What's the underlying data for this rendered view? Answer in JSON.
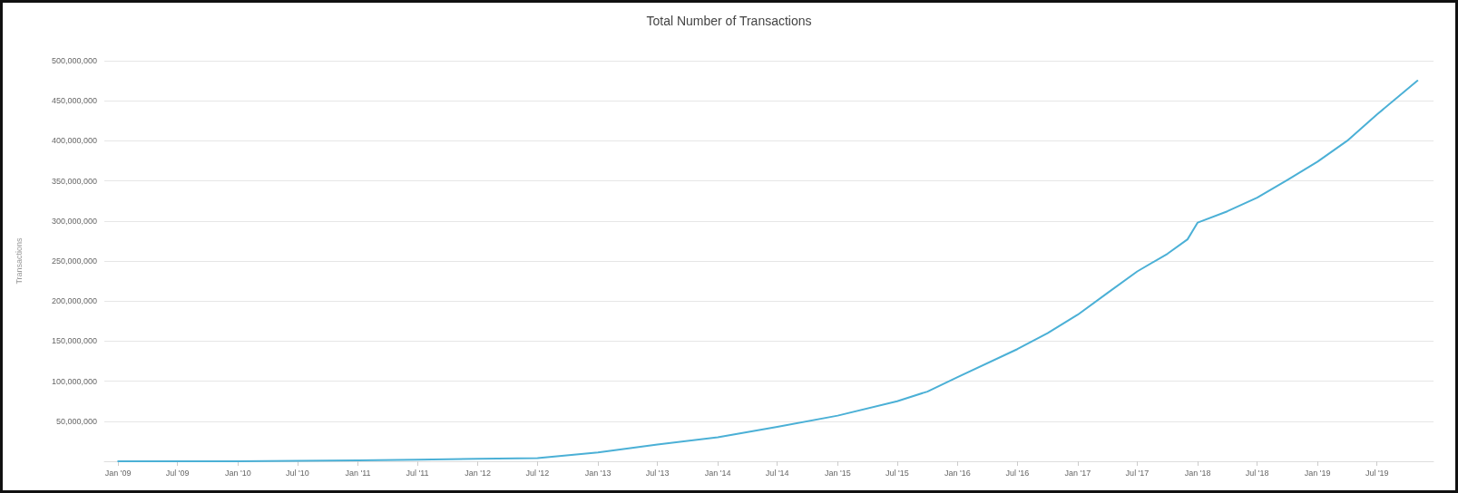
{
  "chart_data": {
    "type": "line",
    "title": "Total Number of Transactions",
    "ylabel": "Transactions",
    "x": [
      "2009-01",
      "2010-01",
      "2011-01",
      "2011-07",
      "2012-01",
      "2012-07",
      "2013-01",
      "2013-07",
      "2014-01",
      "2014-07",
      "2015-01",
      "2015-07",
      "2015-10",
      "2016-01",
      "2016-07",
      "2016-10",
      "2017-01",
      "2017-04",
      "2017-07",
      "2017-10",
      "2017-12",
      "2018-01",
      "2018-04",
      "2018-07",
      "2018-10",
      "2019-01",
      "2019-04",
      "2019-07",
      "2019-11"
    ],
    "series": [
      {
        "color": "#4bb0d6",
        "values": [
          0,
          0,
          1000000,
          2000000,
          3000000,
          4000000,
          11000000,
          21000000,
          30000000,
          43000000,
          57000000,
          75000000,
          87000000,
          105000000,
          140000000,
          160000000,
          183000000,
          210000000,
          237000000,
          259000000,
          277000000,
          298000000,
          312000000,
          329000000,
          351000000,
          374000000,
          400000000,
          433000000,
          475000000
        ]
      }
    ],
    "xlim": [
      "2008-11-20",
      "2019-12-20"
    ],
    "xticks": [
      {
        "value": "2009-01",
        "label": "Jan '09"
      },
      {
        "value": "2009-07",
        "label": "Jul '09"
      },
      {
        "value": "2010-01",
        "label": "Jan '10"
      },
      {
        "value": "2010-07",
        "label": "Jul '10"
      },
      {
        "value": "2011-01",
        "label": "Jan '11"
      },
      {
        "value": "2011-07",
        "label": "Jul '11"
      },
      {
        "value": "2012-01",
        "label": "Jan '12"
      },
      {
        "value": "2012-07",
        "label": "Jul '12"
      },
      {
        "value": "2013-01",
        "label": "Jan '13"
      },
      {
        "value": "2013-07",
        "label": "Jul '13"
      },
      {
        "value": "2014-01",
        "label": "Jan '14"
      },
      {
        "value": "2014-07",
        "label": "Jul '14"
      },
      {
        "value": "2015-01",
        "label": "Jan '15"
      },
      {
        "value": "2015-07",
        "label": "Jul '15"
      },
      {
        "value": "2016-01",
        "label": "Jan '16"
      },
      {
        "value": "2016-07",
        "label": "Jul '16"
      },
      {
        "value": "2017-01",
        "label": "Jan '17"
      },
      {
        "value": "2017-07",
        "label": "Jul '17"
      },
      {
        "value": "2018-01",
        "label": "Jan '18"
      },
      {
        "value": "2018-07",
        "label": "Jul '18"
      },
      {
        "value": "2019-01",
        "label": "Jan '19"
      },
      {
        "value": "2019-07",
        "label": "Jul '19"
      }
    ],
    "ylim": [
      0,
      500000000
    ],
    "yticks": [
      {
        "value": 0,
        "label": null
      },
      {
        "value": 50000000,
        "label": "50,000,000"
      },
      {
        "value": 100000000,
        "label": "100,000,000"
      },
      {
        "value": 150000000,
        "label": "150,000,000"
      },
      {
        "value": 200000000,
        "label": "200,000,000"
      },
      {
        "value": 250000000,
        "label": "250,000,000"
      },
      {
        "value": 300000000,
        "label": "300,000,000"
      },
      {
        "value": 350000000,
        "label": "350,000,000"
      },
      {
        "value": 400000000,
        "label": "400,000,000"
      },
      {
        "value": 450000000,
        "label": "450,000,000"
      },
      {
        "value": 500000000,
        "label": "500,000,000"
      }
    ],
    "grid": "y",
    "marker": "none",
    "line_style": "solid"
  }
}
